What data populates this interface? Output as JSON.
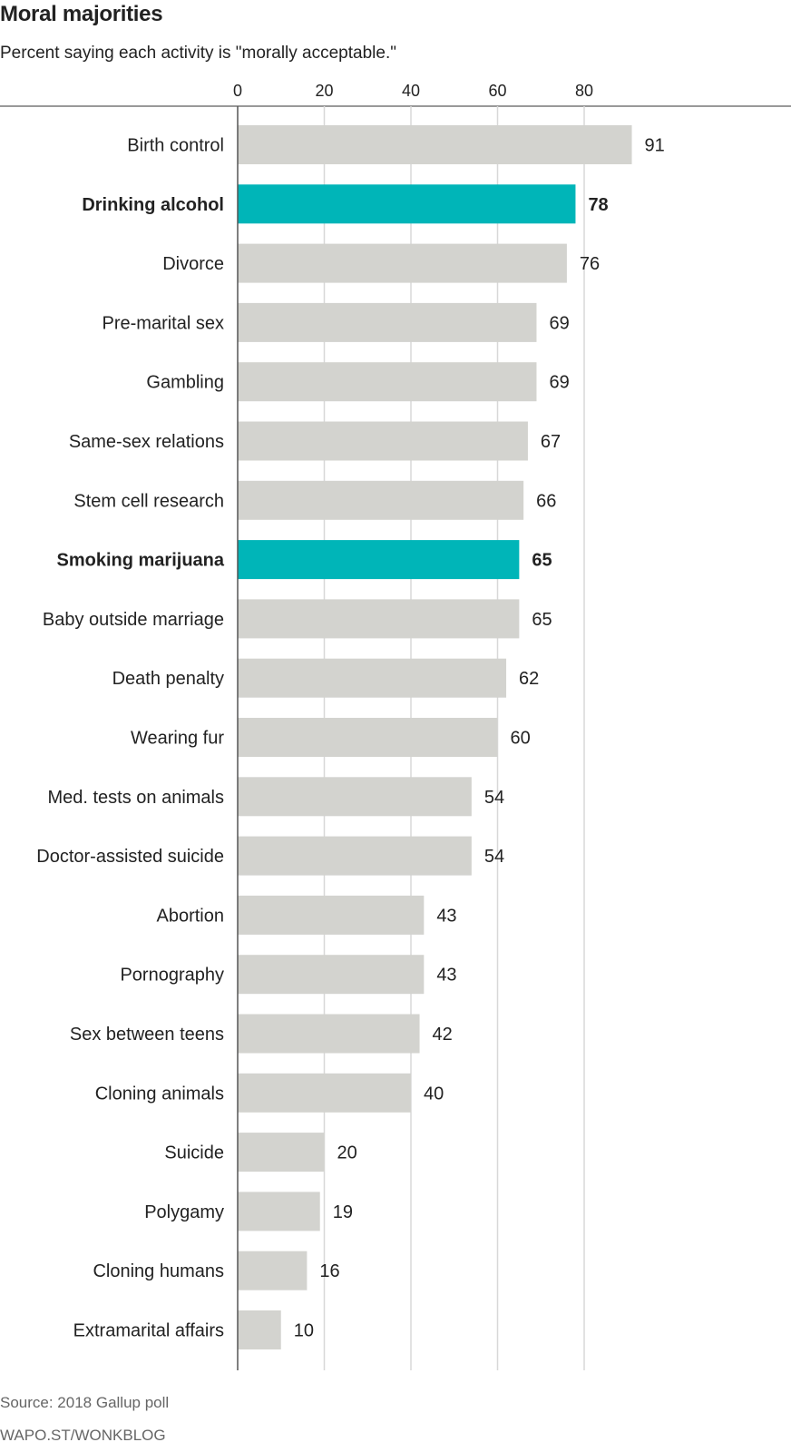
{
  "header": {
    "title": "Moral majorities",
    "subtitle": "Percent saying each activity is \"morally acceptable.\""
  },
  "footer": {
    "source": "Source: 2018 Gallup poll",
    "credit": "WAPO.ST/WONKBLOG"
  },
  "colors": {
    "default_bar": "#d3d3cf",
    "highlight_bar": "#00b5b8",
    "gridline": "#d8d8d8"
  },
  "chart_data": {
    "type": "bar",
    "orientation": "horizontal",
    "title": "Moral majorities",
    "subtitle": "Percent saying each activity is \"morally acceptable.\"",
    "xlim": [
      0,
      91
    ],
    "xticks": [
      0,
      20,
      40,
      60,
      80
    ],
    "grid": true,
    "categories": [
      "Birth control",
      "Drinking alcohol",
      "Divorce",
      "Pre-marital sex",
      "Gambling",
      "Same-sex relations",
      "Stem cell research",
      "Smoking marijuana",
      "Baby outside marriage",
      "Death penalty",
      "Wearing fur",
      "Med. tests on animals",
      "Doctor-assisted suicide",
      "Abortion",
      "Pornography",
      "Sex between teens",
      "Cloning animals",
      "Suicide",
      "Polygamy",
      "Cloning humans",
      "Extramarital affairs"
    ],
    "values": [
      91,
      78,
      76,
      69,
      69,
      67,
      66,
      65,
      65,
      62,
      60,
      54,
      54,
      43,
      43,
      42,
      40,
      20,
      19,
      16,
      10
    ],
    "highlighted": [
      "Drinking alcohol",
      "Smoking marijuana"
    ]
  }
}
